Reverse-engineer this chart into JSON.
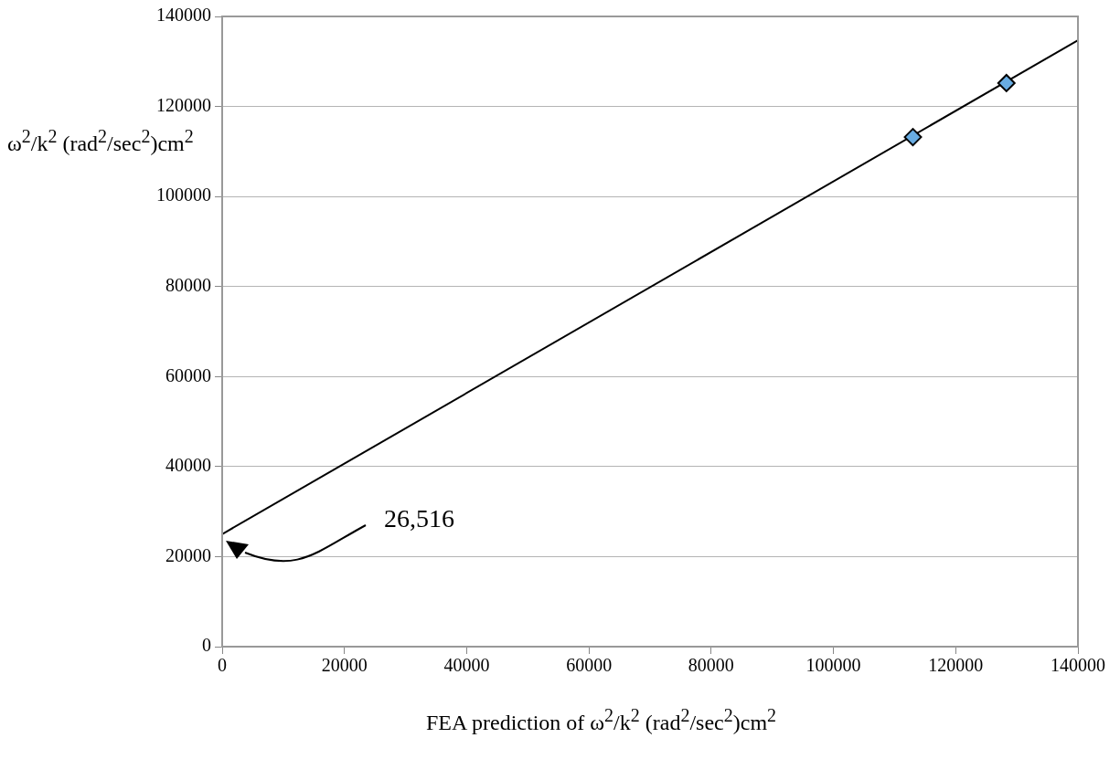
{
  "chart_data": {
    "type": "scatter",
    "xlabel": "FEA prediction of ω$^{2}$/k$^{2}$ (rad$^{2}$/sec$^{2}$)cm$^{2}$",
    "ylabel": "ω$^{2}$/k$^{2}$ (rad$^{2}$/sec$^{2}$)cm$^{2}$",
    "series": [
      {
        "type": "scatter",
        "color": "#69ade3",
        "marker": "diamond",
        "x": [
          113000,
          128300
        ],
        "values": [
          113200,
          125200
        ]
      },
      {
        "type": "line",
        "color": "#000000",
        "marker": "none",
        "x": [
          0,
          140000
        ],
        "values": [
          25000,
          134700
        ]
      }
    ],
    "xlim": [
      0,
      140000
    ],
    "xticks": [
      0,
      20000,
      40000,
      60000,
      80000,
      100000,
      120000,
      140000
    ],
    "ylim": [
      0,
      140000
    ],
    "yticks": [
      0,
      20000,
      40000,
      60000,
      80000,
      100000,
      120000,
      140000
    ],
    "grid": "y",
    "annotations": [
      "26,516"
    ]
  }
}
